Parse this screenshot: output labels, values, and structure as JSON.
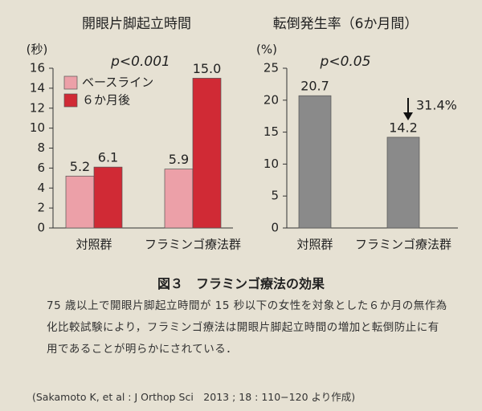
{
  "chart_data": [
    {
      "type": "bar",
      "title": "開眼片脚起立時間",
      "y_label": "(秒)",
      "annotation": "p<0.001",
      "categories": [
        "対照群",
        "フラミンゴ療法群"
      ],
      "series": [
        {
          "name": "ベースライン",
          "color": "#eca0a8",
          "values": [
            5.2,
            5.9
          ]
        },
        {
          "name": "６か月後",
          "color": "#d02a35",
          "values": [
            6.1,
            15.0
          ],
          "value_labels": [
            "6.1",
            "15.0"
          ]
        }
      ],
      "ylim": [
        0,
        16
      ],
      "yticks": [
        0,
        2,
        4,
        6,
        8,
        10,
        12,
        14,
        16
      ],
      "legend": "upper-left"
    },
    {
      "type": "bar",
      "title": "転倒発生率（6か月間）",
      "y_label": "(%)",
      "annotation": "p<0.05",
      "categories": [
        "対照群",
        "フラミンゴ療法群"
      ],
      "color": "#8a8a8a",
      "values": [
        20.7,
        14.2
      ],
      "change_label": "31.4%",
      "ylim": [
        0,
        25
      ],
      "yticks": [
        0,
        5,
        10,
        15,
        20,
        25
      ]
    }
  ],
  "figure": {
    "caption": "図３　フラミンゴ療法の効果",
    "description": "75 歳以上で開眼片脚起立時間が 15 秒以下の女性を対象とした６か月の無作為化比較試験により，フラミンゴ療法は開眼片脚起立時間の増加と転倒防止に有用であることが明らかにされている．",
    "citation": "(Sakamoto K, et al : J Orthop Sci　2013 ; 18 : 110−120 より作成)"
  }
}
